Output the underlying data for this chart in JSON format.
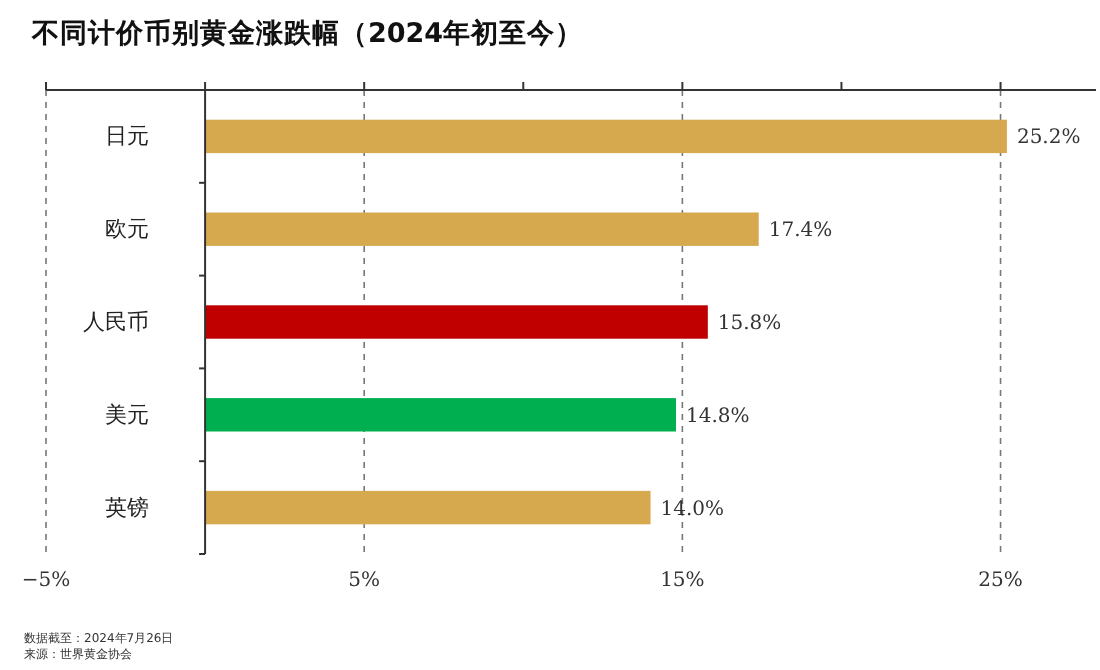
{
  "chart_data": {
    "type": "bar",
    "orientation": "horizontal",
    "title": "不同计价币别黄金涨跌幅（2024年初至今）",
    "categories": [
      "日元",
      "欧元",
      "人民币",
      "美元",
      "英镑"
    ],
    "values": [
      25.2,
      17.4,
      15.8,
      14.8,
      14.0
    ],
    "colors": [
      "#d6a94e",
      "#d6a94e",
      "#c00000",
      "#00b050",
      "#d6a94e"
    ],
    "value_labels": [
      "25.2%",
      "17.4%",
      "15.8%",
      "14.8%",
      "14.0%"
    ],
    "xlim": [
      -5,
      28
    ],
    "xticks": [
      {
        "value": -5,
        "label": "−5%"
      },
      {
        "value": 0,
        "label": null
      },
      {
        "value": 5,
        "label": "5%"
      },
      {
        "value": 10,
        "label": null
      },
      {
        "value": 15,
        "label": "15%"
      },
      {
        "value": 20,
        "label": null
      },
      {
        "value": 25,
        "label": "25%"
      }
    ],
    "grid": "x",
    "annotations": [
      "数据截至：2024年7月26日",
      "来源：世界黄金协会"
    ]
  }
}
